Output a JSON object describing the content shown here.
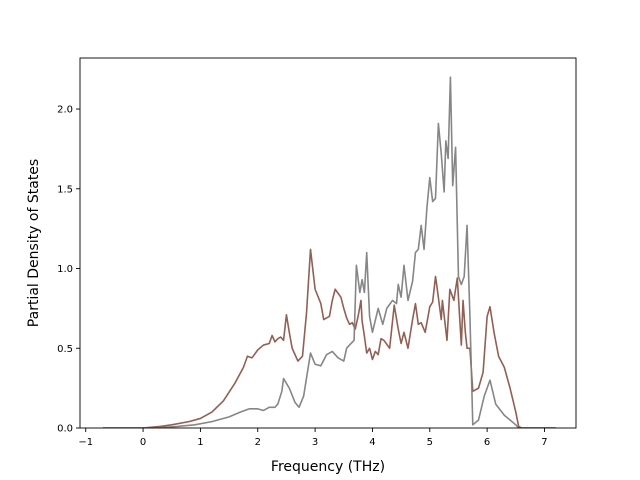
{
  "chart_data": {
    "type": "line",
    "title": "",
    "xlabel": "Frequency (THz)",
    "ylabel": "Partial Density of States",
    "xlim": [
      -1.1,
      7.55
    ],
    "ylim": [
      0.0,
      2.32
    ],
    "x_ticks": [
      -1,
      0,
      1,
      2,
      3,
      4,
      5,
      6,
      7
    ],
    "x_tick_labels": [
      "−1",
      "0",
      "1",
      "2",
      "3",
      "4",
      "5",
      "6",
      "7"
    ],
    "y_ticks": [
      0.0,
      0.5,
      1.0,
      1.5,
      2.0
    ],
    "y_tick_labels": [
      "0.0",
      "0.5",
      "1.0",
      "1.5",
      "2.0"
    ],
    "grid": false,
    "legend": "none",
    "series": [
      {
        "color": "#8c564b",
        "points": [
          [
            -0.7,
            0.0
          ],
          [
            0.0,
            0.0
          ],
          [
            0.3,
            0.01
          ],
          [
            0.5,
            0.02
          ],
          [
            0.8,
            0.04
          ],
          [
            1.0,
            0.06
          ],
          [
            1.2,
            0.1
          ],
          [
            1.4,
            0.17
          ],
          [
            1.6,
            0.28
          ],
          [
            1.75,
            0.38
          ],
          [
            1.82,
            0.45
          ],
          [
            1.9,
            0.44
          ],
          [
            2.0,
            0.49
          ],
          [
            2.1,
            0.52
          ],
          [
            2.2,
            0.53
          ],
          [
            2.25,
            0.58
          ],
          [
            2.3,
            0.54
          ],
          [
            2.35,
            0.56
          ],
          [
            2.4,
            0.57
          ],
          [
            2.45,
            0.55
          ],
          [
            2.5,
            0.71
          ],
          [
            2.55,
            0.6
          ],
          [
            2.6,
            0.5
          ],
          [
            2.7,
            0.42
          ],
          [
            2.78,
            0.45
          ],
          [
            2.85,
            0.72
          ],
          [
            2.92,
            1.12
          ],
          [
            3.0,
            0.87
          ],
          [
            3.1,
            0.78
          ],
          [
            3.15,
            0.68
          ],
          [
            3.25,
            0.7
          ],
          [
            3.3,
            0.8
          ],
          [
            3.35,
            0.87
          ],
          [
            3.45,
            0.82
          ],
          [
            3.5,
            0.75
          ],
          [
            3.55,
            0.69
          ],
          [
            3.6,
            0.65
          ],
          [
            3.65,
            0.66
          ],
          [
            3.7,
            0.62
          ],
          [
            3.75,
            0.7
          ],
          [
            3.8,
            0.8
          ],
          [
            3.82,
            0.67
          ],
          [
            3.85,
            0.6
          ],
          [
            3.9,
            0.47
          ],
          [
            3.95,
            0.5
          ],
          [
            4.0,
            0.43
          ],
          [
            4.05,
            0.48
          ],
          [
            4.1,
            0.46
          ],
          [
            4.15,
            0.56
          ],
          [
            4.2,
            0.55
          ],
          [
            4.3,
            0.5
          ],
          [
            4.38,
            0.77
          ],
          [
            4.45,
            0.62
          ],
          [
            4.5,
            0.53
          ],
          [
            4.55,
            0.6
          ],
          [
            4.62,
            0.5
          ],
          [
            4.7,
            0.68
          ],
          [
            4.75,
            0.78
          ],
          [
            4.8,
            0.65
          ],
          [
            4.85,
            0.66
          ],
          [
            4.92,
            0.6
          ],
          [
            5.0,
            0.76
          ],
          [
            5.05,
            0.79
          ],
          [
            5.1,
            0.95
          ],
          [
            5.12,
            0.9
          ],
          [
            5.2,
            0.68
          ],
          [
            5.22,
            0.8
          ],
          [
            5.3,
            0.55
          ],
          [
            5.35,
            0.87
          ],
          [
            5.42,
            0.8
          ],
          [
            5.48,
            0.94
          ],
          [
            5.52,
            0.7
          ],
          [
            5.55,
            0.52
          ],
          [
            5.58,
            0.8
          ],
          [
            5.62,
            0.6
          ],
          [
            5.65,
            0.5
          ],
          [
            5.7,
            0.5
          ],
          [
            5.75,
            0.23
          ],
          [
            5.85,
            0.25
          ],
          [
            5.93,
            0.35
          ],
          [
            6.0,
            0.7
          ],
          [
            6.05,
            0.76
          ],
          [
            6.12,
            0.6
          ],
          [
            6.2,
            0.45
          ],
          [
            6.3,
            0.38
          ],
          [
            6.4,
            0.25
          ],
          [
            6.5,
            0.1
          ],
          [
            6.55,
            0.01
          ],
          [
            6.6,
            0.0
          ],
          [
            7.2,
            0.0
          ]
        ]
      },
      {
        "color": "#7f7f7f",
        "points": [
          [
            -0.7,
            0.0
          ],
          [
            0.2,
            0.0
          ],
          [
            0.6,
            0.01
          ],
          [
            0.9,
            0.02
          ],
          [
            1.2,
            0.04
          ],
          [
            1.5,
            0.07
          ],
          [
            1.7,
            0.1
          ],
          [
            1.85,
            0.12
          ],
          [
            2.0,
            0.12
          ],
          [
            2.1,
            0.11
          ],
          [
            2.2,
            0.13
          ],
          [
            2.3,
            0.13
          ],
          [
            2.35,
            0.15
          ],
          [
            2.42,
            0.23
          ],
          [
            2.45,
            0.31
          ],
          [
            2.55,
            0.25
          ],
          [
            2.65,
            0.16
          ],
          [
            2.72,
            0.13
          ],
          [
            2.8,
            0.2
          ],
          [
            2.88,
            0.38
          ],
          [
            2.92,
            0.47
          ],
          [
            3.0,
            0.4
          ],
          [
            3.1,
            0.39
          ],
          [
            3.2,
            0.46
          ],
          [
            3.3,
            0.48
          ],
          [
            3.4,
            0.44
          ],
          [
            3.5,
            0.42
          ],
          [
            3.55,
            0.5
          ],
          [
            3.6,
            0.52
          ],
          [
            3.68,
            0.55
          ],
          [
            3.72,
            1.02
          ],
          [
            3.78,
            0.85
          ],
          [
            3.82,
            0.93
          ],
          [
            3.86,
            0.85
          ],
          [
            3.9,
            1.1
          ],
          [
            3.95,
            0.7
          ],
          [
            4.0,
            0.6
          ],
          [
            4.1,
            0.75
          ],
          [
            4.18,
            0.65
          ],
          [
            4.25,
            0.75
          ],
          [
            4.35,
            0.8
          ],
          [
            4.42,
            0.78
          ],
          [
            4.45,
            0.9
          ],
          [
            4.5,
            0.82
          ],
          [
            4.55,
            1.02
          ],
          [
            4.62,
            0.8
          ],
          [
            4.7,
            0.92
          ],
          [
            4.75,
            1.1
          ],
          [
            4.8,
            1.12
          ],
          [
            4.85,
            1.27
          ],
          [
            4.9,
            1.12
          ],
          [
            4.95,
            1.38
          ],
          [
            5.0,
            1.57
          ],
          [
            5.05,
            1.42
          ],
          [
            5.1,
            1.44
          ],
          [
            5.15,
            1.91
          ],
          [
            5.2,
            1.72
          ],
          [
            5.25,
            1.48
          ],
          [
            5.28,
            1.8
          ],
          [
            5.32,
            1.69
          ],
          [
            5.36,
            2.2
          ],
          [
            5.4,
            1.52
          ],
          [
            5.45,
            1.76
          ],
          [
            5.5,
            0.95
          ],
          [
            5.55,
            0.9
          ],
          [
            5.6,
            0.95
          ],
          [
            5.65,
            1.27
          ],
          [
            5.7,
            0.7
          ],
          [
            5.75,
            0.02
          ],
          [
            5.85,
            0.05
          ],
          [
            5.95,
            0.2
          ],
          [
            6.05,
            0.3
          ],
          [
            6.15,
            0.15
          ],
          [
            6.3,
            0.08
          ],
          [
            6.5,
            0.02
          ],
          [
            6.55,
            0.0
          ],
          [
            7.2,
            0.0
          ]
        ]
      }
    ]
  }
}
